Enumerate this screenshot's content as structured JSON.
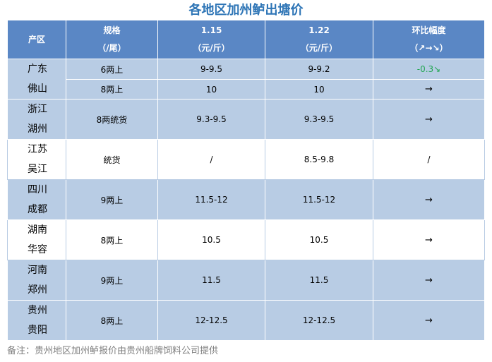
{
  "title": "各地区加州鲈出塘价",
  "header": {
    "region": "产区",
    "spec_line1": "规格",
    "spec_line2": "（/尾）",
    "date1_line1": "1.15",
    "date1_line2": "（元/斤）",
    "date2_line1": "1.22",
    "date2_line2": "（元/斤）",
    "change_line1": "环比幅度",
    "change_line2": "（↗→↘）"
  },
  "rows": [
    {
      "region_line1": "广东",
      "region_line2": "佛山",
      "spec": "6两上",
      "price1": "9-9.5",
      "price2": "9-9.2",
      "change": "-0.3↘"
    },
    {
      "spec": "8两上",
      "price1": "10",
      "price2": "10",
      "change": "→"
    },
    {
      "region_line1": "浙江",
      "region_line2": "湖州",
      "spec": "8两统货",
      "price1": "9.3-9.5",
      "price2": "9.3-9.5",
      "change": "→"
    },
    {
      "region_line1": "江苏",
      "region_line2": "吴江",
      "spec": "统货",
      "price1": "/",
      "price2": "8.5-9.8",
      "change": "/"
    },
    {
      "region_line1": "四川",
      "region_line2": "成都",
      "spec": "9两上",
      "price1": "11.5-12",
      "price2": "11.5-12",
      "change": "→"
    },
    {
      "region_line1": "湖南",
      "region_line2": "华容",
      "spec": "8两上",
      "price1": "10.5",
      "price2": "10.5",
      "change": "→"
    },
    {
      "region_line1": "河南",
      "region_line2": "郑州",
      "spec": "9两上",
      "price1": "11.5",
      "price2": "11.5",
      "change": "→"
    },
    {
      "region_line1": "贵州",
      "region_line2": "贵阳",
      "spec": "8两上",
      "price1": "12-12.5",
      "price2": "12-12.5",
      "change": "→"
    }
  ],
  "note": "备注：贵州地区加州鲈报价由贵州船牌饲料公司提供",
  "colors": {
    "header_bg": "#5a87c5",
    "row_blue": "#b8cce4",
    "title": "#2e75b6",
    "down": "#22a652"
  }
}
